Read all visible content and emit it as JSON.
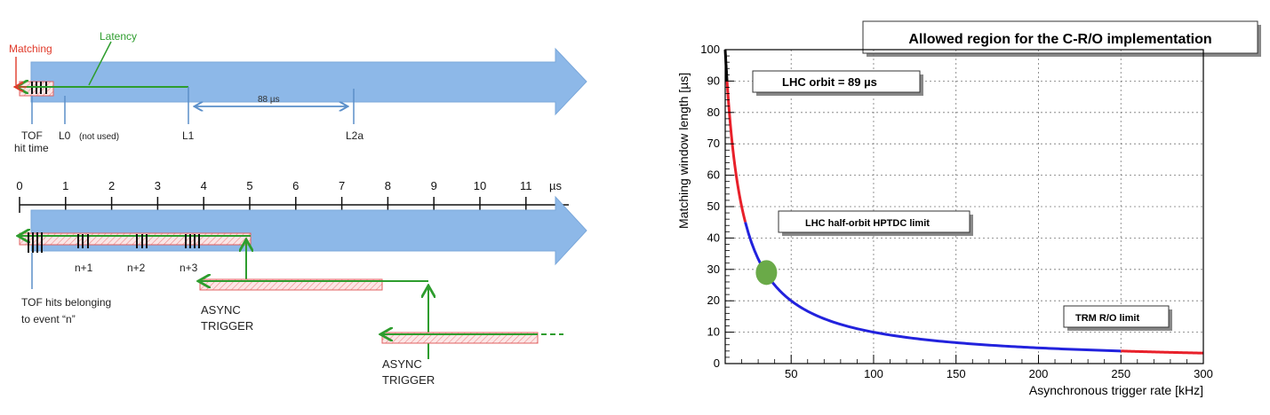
{
  "timing_diagram": {
    "labels": {
      "matching": "Matching",
      "latency": "Latency",
      "interval": "88 µs",
      "tof_hit_time_1": "TOF",
      "tof_hit_time_2": "hit time",
      "l0": "L0",
      "l0_note": "(not used)",
      "l1": "L1",
      "l2a": "L2a",
      "unit": "µs",
      "n1": "n+1",
      "n2": "n+2",
      "n3": "n+3",
      "tof_hits_1": "TOF hits belonging",
      "tof_hits_2": "to event “n”",
      "async1_a": "ASYNC",
      "async1_b": "TRIGGER",
      "async2_a": "ASYNC",
      "async2_b": "TRIGGER"
    },
    "scale_ticks": [
      "0",
      "1",
      "2",
      "3",
      "4",
      "5",
      "6",
      "7",
      "8",
      "9",
      "10",
      "11"
    ],
    "colors": {
      "arrow": "#8db8e8",
      "green": "#2e9d2e",
      "red": "#e03a2a",
      "blue": "#5b8fc9"
    }
  },
  "chart_data": {
    "type": "line",
    "title": "Allowed region for the C-R/O implementation",
    "xlabel": "Asynchronous trigger rate [kHz]",
    "ylabel": "Matching window length [µs]",
    "xlim": [
      10,
      300
    ],
    "ylim": [
      0,
      100
    ],
    "x_ticks": [
      50,
      100,
      150,
      200,
      250,
      300
    ],
    "y_ticks": [
      0,
      10,
      20,
      30,
      40,
      50,
      60,
      70,
      80,
      90,
      100
    ],
    "grid": true,
    "curve": "y = 1000 / x",
    "series": [
      {
        "color": "#000000",
        "x": [
          10,
          11.1
        ],
        "y": [
          100,
          90
        ]
      },
      {
        "color": "#e8202a",
        "x": [
          11.1,
          12,
          14,
          16,
          18,
          20,
          22.2
        ],
        "y": [
          90,
          83.3,
          71.4,
          62.5,
          55.6,
          50,
          45
        ]
      },
      {
        "color": "#2222dd",
        "x": [
          22.2,
          25,
          30,
          35,
          40,
          50,
          60,
          80,
          100,
          125,
          150,
          200,
          250
        ],
        "y": [
          45,
          40,
          33.3,
          28.6,
          25,
          20,
          16.7,
          12.5,
          10,
          8,
          6.67,
          5,
          4
        ]
      },
      {
        "color": "#e8202a",
        "x": [
          250,
          275,
          300
        ],
        "y": [
          4,
          3.64,
          3.33
        ]
      }
    ],
    "annotations": [
      {
        "text": "LHC orbit = 89 µs",
        "y": 89
      },
      {
        "text": "LHC half-orbit HPTDC limit",
        "y": 45
      },
      {
        "text": "TRM R/O limit",
        "y": 4
      }
    ],
    "marker": {
      "x": 35,
      "y": 29,
      "color": "#6aaa48"
    }
  }
}
